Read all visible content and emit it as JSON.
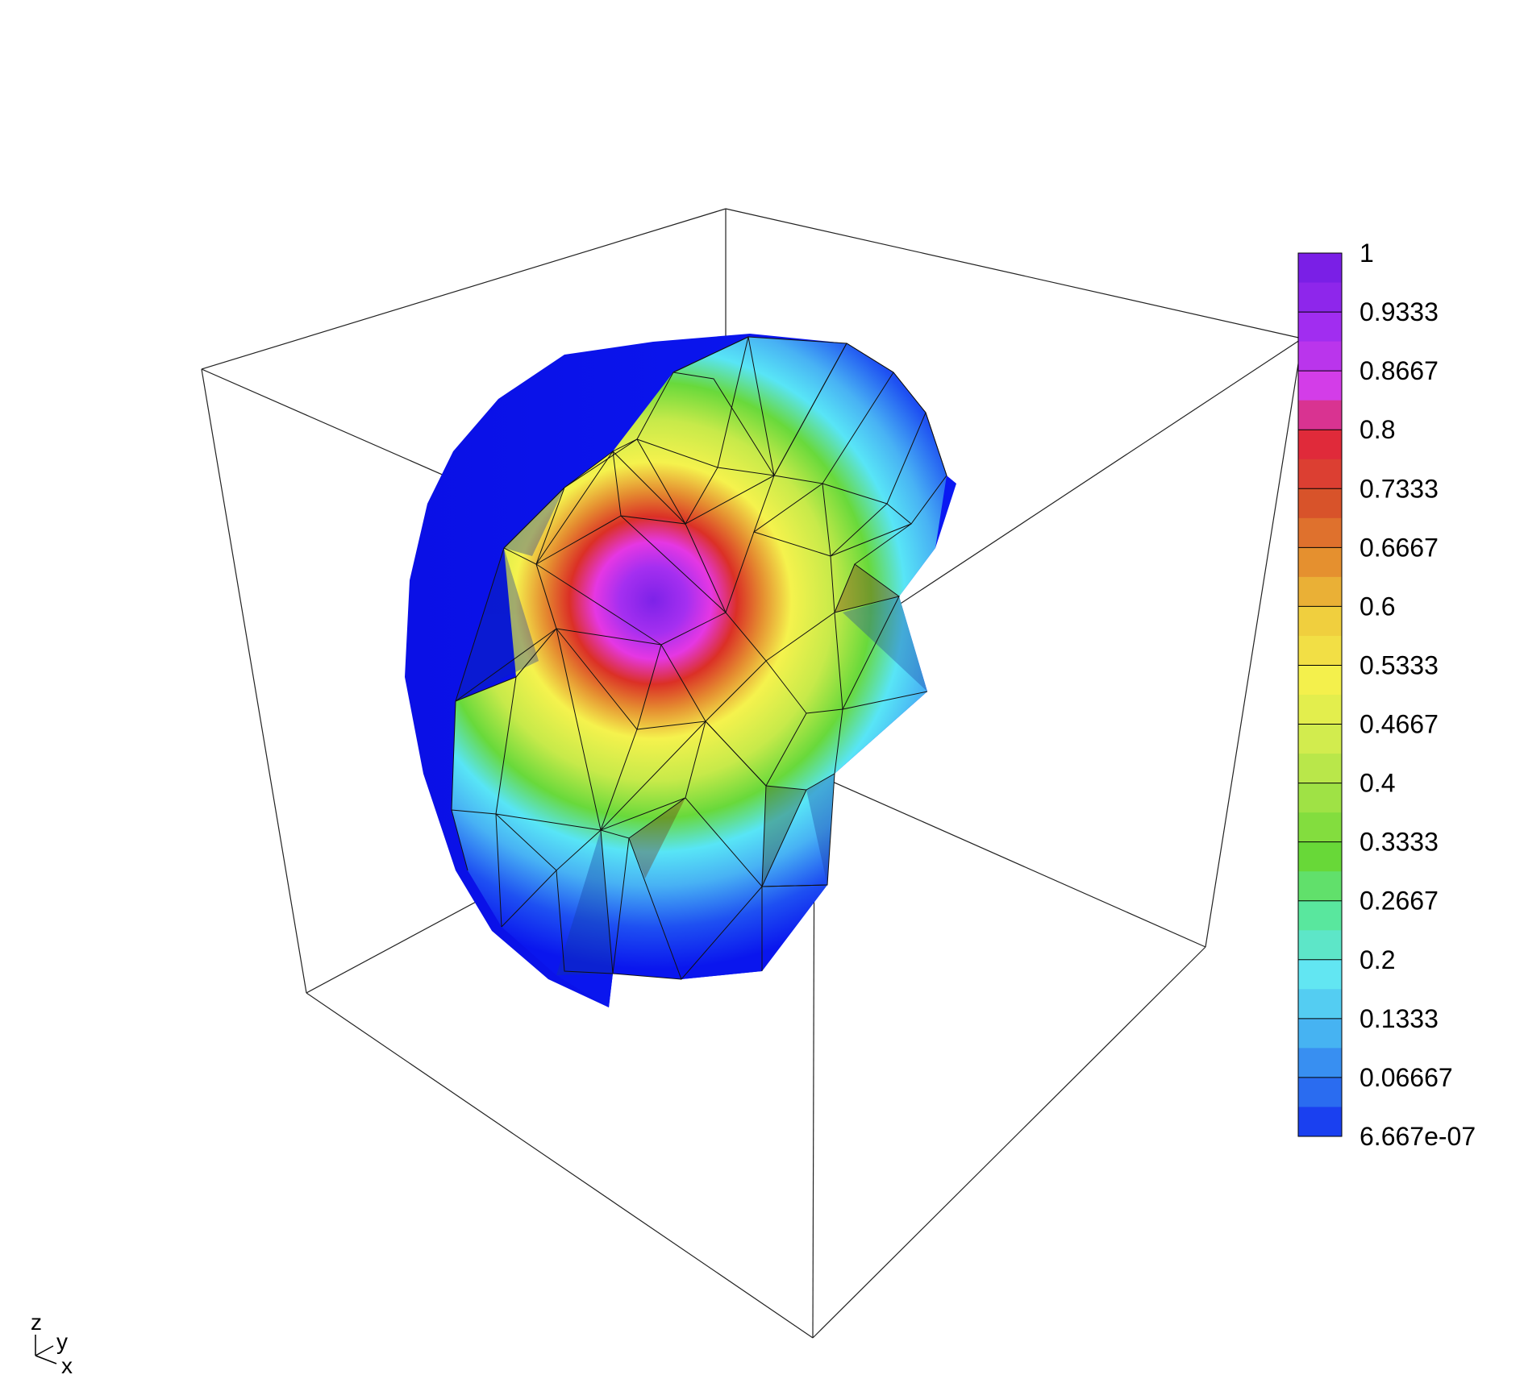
{
  "colorbar": {
    "ticks": [
      "1",
      "0.9333",
      "0.8667",
      "0.8",
      "0.7333",
      "0.6667",
      "0.6",
      "0.5333",
      "0.4667",
      "0.4",
      "0.3333",
      "0.2667",
      "0.2",
      "0.1333",
      "0.06667",
      "6.667e-07"
    ],
    "colors": [
      "#7a1fe6",
      "#a12df0",
      "#d33de8",
      "#e02a3a",
      "#d8532a",
      "#e5902f",
      "#f0cf3e",
      "#f4f04c",
      "#d2ec4e",
      "#9fe245",
      "#68d838",
      "#59e79e",
      "#62e6f2",
      "#46b3f2",
      "#2a6cf0",
      "#0a14f0"
    ]
  },
  "axes_triad": {
    "z": "z",
    "y": "y",
    "x": "x"
  },
  "colors": {
    "deep_blue": "#0a16ee",
    "blue": "#1e50f2",
    "light_blue": "#48b2f4",
    "cyan": "#58e5f6",
    "green": "#68d93b",
    "yellow_green": "#c7ea4a",
    "yellow": "#f5f24d",
    "orange": "#e58c30",
    "red": "#db3026",
    "magenta": "#e537e3",
    "violet": "#a52ff0",
    "purple": "#7d22e8"
  }
}
